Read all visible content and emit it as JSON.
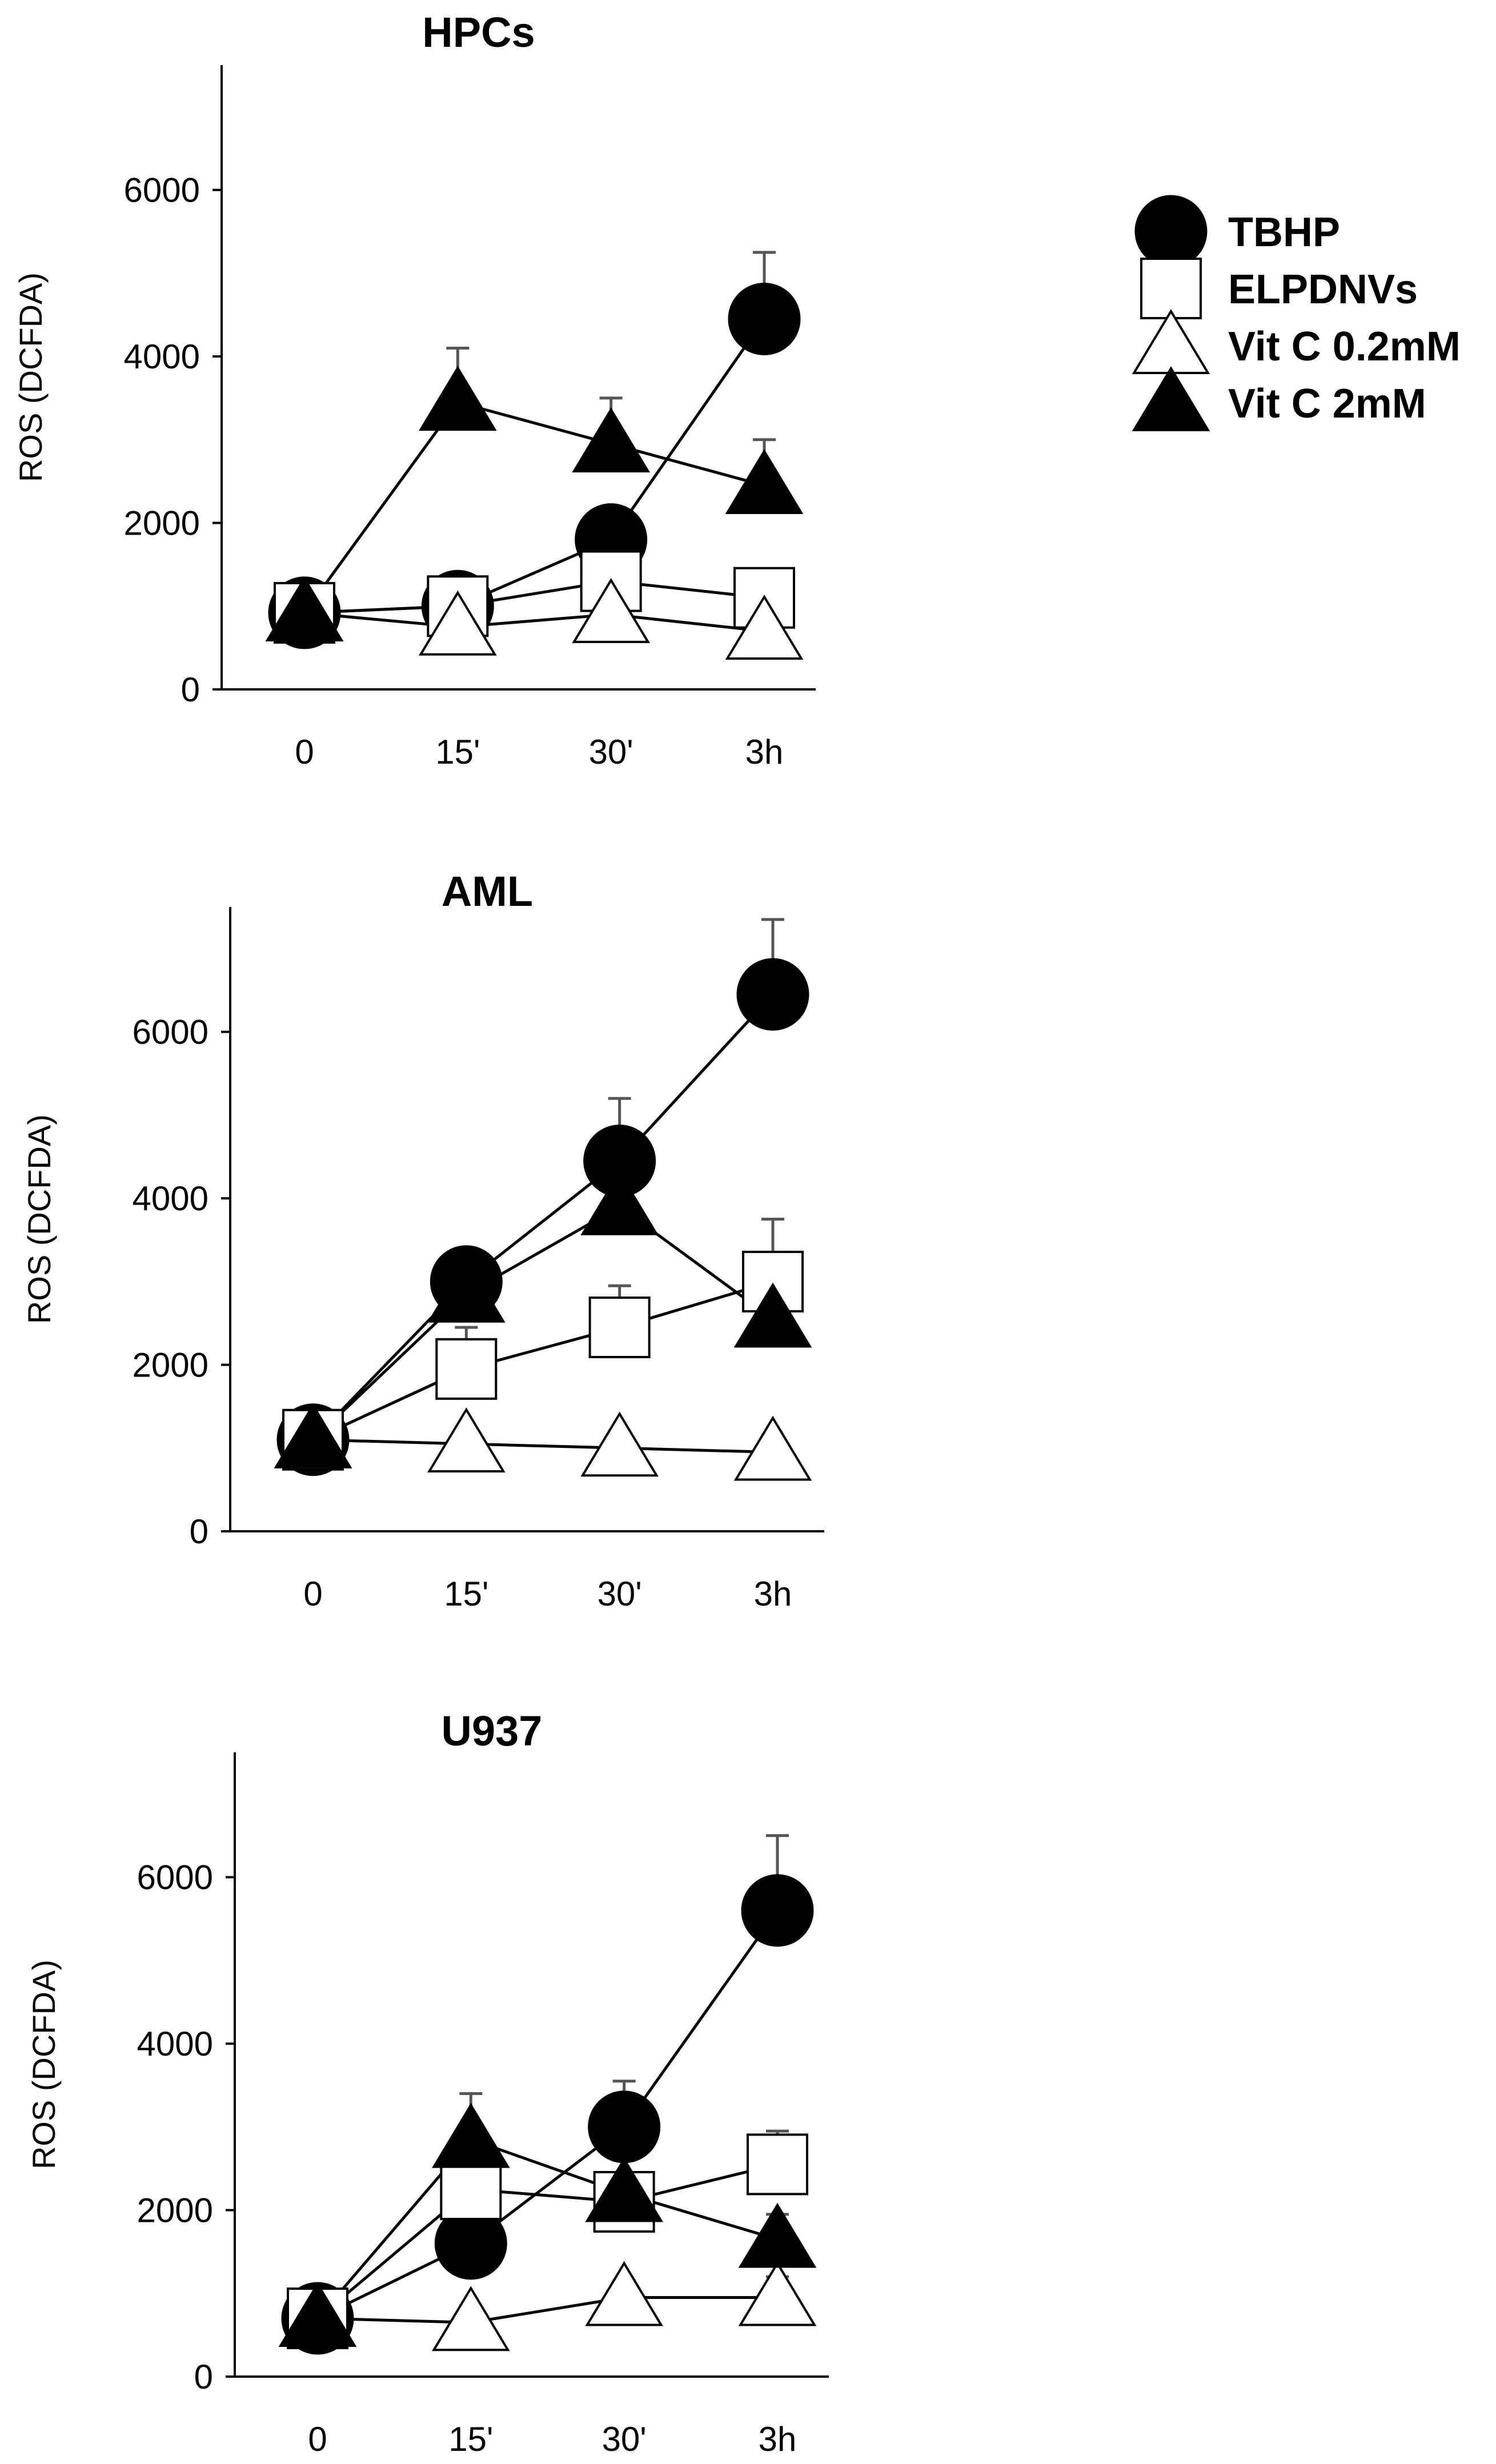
{
  "legend": [
    {
      "name": "TBHP",
      "marker": "filled-circle"
    },
    {
      "name": "ELPDNVs",
      "marker": "open-square"
    },
    {
      "name": "Vit C 0.2mM",
      "marker": "open-triangle"
    },
    {
      "name": "Vit C 2mM",
      "marker": "filled-triangle"
    }
  ],
  "colors": {
    "marker_fill": "#000000",
    "open_marker_fill": "#ffffff",
    "line": "#000000",
    "error_bar": "#555555"
  },
  "chart_data": [
    {
      "type": "line",
      "title": "HPCs",
      "xlabel": "",
      "ylabel": "ROS (DCFDA)",
      "categories": [
        "0",
        "15'",
        "30'",
        "3h"
      ],
      "yticks": [
        0,
        2000,
        4000,
        6000
      ],
      "ylim": [
        0,
        7500
      ],
      "grid": false,
      "legend_position": "right",
      "series": [
        {
          "name": "TBHP",
          "values": [
            920,
            1000,
            1800,
            4450
          ],
          "errors": [
            0,
            0,
            350,
            800
          ]
        },
        {
          "name": "ELPDNVs",
          "values": [
            920,
            1000,
            1300,
            1100
          ],
          "errors": [
            0,
            0,
            0,
            0
          ]
        },
        {
          "name": "Vit C 0.2mM",
          "values": [
            920,
            750,
            900,
            700
          ],
          "errors": [
            0,
            0,
            0,
            0
          ]
        },
        {
          "name": "Vit C 2mM",
          "values": [
            920,
            3450,
            2950,
            2450
          ],
          "errors": [
            0,
            650,
            550,
            550
          ]
        }
      ]
    },
    {
      "type": "line",
      "title": "AML",
      "xlabel": "",
      "ylabel": "ROS (DCFDA)",
      "categories": [
        "0",
        "15'",
        "30'",
        "3h"
      ],
      "yticks": [
        0,
        2000,
        4000,
        6000
      ],
      "ylim": [
        0,
        7500
      ],
      "grid": false,
      "legend_position": "right",
      "series": [
        {
          "name": "TBHP",
          "values": [
            1100,
            3000,
            4450,
            6450
          ],
          "errors": [
            0,
            250,
            750,
            900
          ]
        },
        {
          "name": "ELPDNVs",
          "values": [
            1100,
            1950,
            2450,
            3000
          ],
          "errors": [
            0,
            500,
            500,
            750
          ]
        },
        {
          "name": "Vit C 0.2mM",
          "values": [
            1100,
            1050,
            1000,
            950
          ],
          "errors": [
            0,
            0,
            200,
            200
          ]
        },
        {
          "name": "Vit C 2mM",
          "values": [
            1100,
            2850,
            3900,
            2550
          ],
          "errors": [
            0,
            0,
            0,
            0
          ]
        }
      ]
    },
    {
      "type": "line",
      "title": "U937",
      "xlabel": "",
      "ylabel": "ROS (DCFDA)",
      "categories": [
        "0",
        "15'",
        "30'",
        "3h"
      ],
      "yticks": [
        0,
        2000,
        4000,
        6000
      ],
      "ylim": [
        0,
        7500
      ],
      "grid": false,
      "legend_position": "right",
      "series": [
        {
          "name": "TBHP",
          "values": [
            700,
            1600,
            3000,
            5600
          ],
          "errors": [
            0,
            0,
            550,
            900
          ]
        },
        {
          "name": "ELPDNVs",
          "values": [
            700,
            2250,
            2100,
            2550
          ],
          "errors": [
            0,
            0,
            300,
            400
          ]
        },
        {
          "name": "Vit C 0.2mM",
          "values": [
            700,
            650,
            950,
            950
          ],
          "errors": [
            0,
            200,
            200,
            250
          ]
        },
        {
          "name": "Vit C 2mM",
          "values": [
            700,
            2850,
            2200,
            1650
          ],
          "errors": [
            0,
            550,
            400,
            300
          ]
        }
      ]
    }
  ]
}
